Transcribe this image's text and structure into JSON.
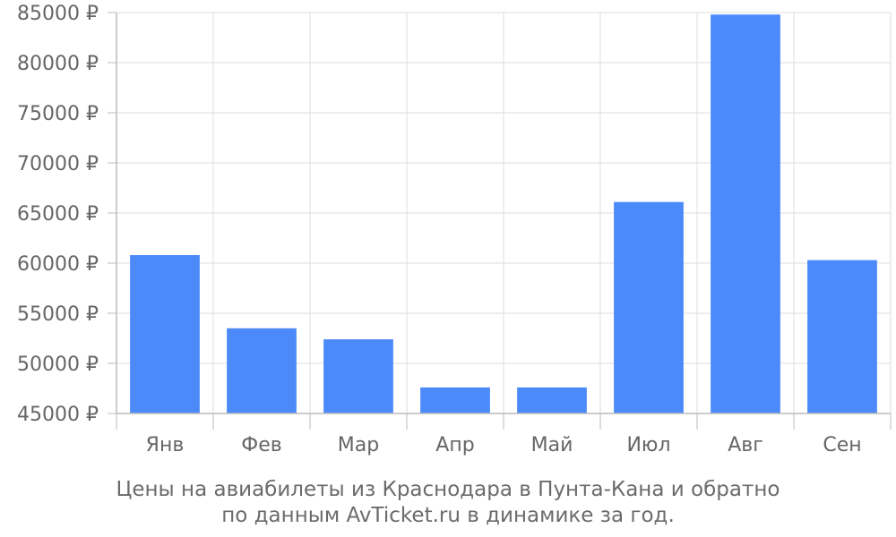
{
  "chart_data": {
    "type": "bar",
    "categories": [
      "Янв",
      "Фев",
      "Мар",
      "Апр",
      "Май",
      "Июл",
      "Авг",
      "Сен"
    ],
    "values": [
      60800,
      53500,
      52400,
      47600,
      47600,
      66100,
      84800,
      60300
    ],
    "ylim": [
      45000,
      85000
    ],
    "yticks": [
      45000,
      50000,
      55000,
      60000,
      65000,
      70000,
      75000,
      80000,
      85000
    ],
    "ytick_labels": [
      "45000 ₽",
      "50000 ₽",
      "55000 ₽",
      "60000 ₽",
      "65000 ₽",
      "70000 ₽",
      "75000 ₽",
      "80000 ₽",
      "85000 ₽"
    ],
    "grid": true,
    "bar_color": "#4d8af9"
  },
  "caption": {
    "line1": "Цены на авиабилеты из Краснодара в Пунта-Кана и обратно",
    "line2": "по данным AvTicket.ru в динамике за год."
  }
}
